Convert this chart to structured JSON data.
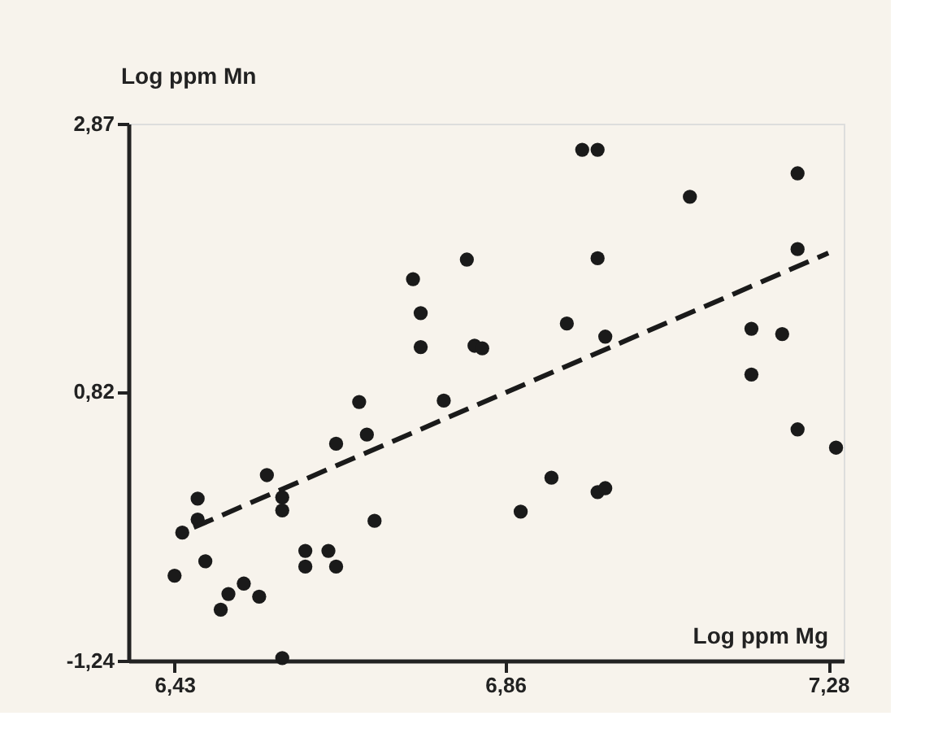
{
  "chart_data": {
    "type": "scatter",
    "xlabel": "Log ppm Mg",
    "ylabel": "Log ppm Mn",
    "xlim": [
      6.37,
      7.3
    ],
    "ylim": [
      -1.24,
      2.87
    ],
    "xticks": [
      {
        "value": 6.43,
        "label": "6,43"
      },
      {
        "value": 6.86,
        "label": "6,86"
      },
      {
        "value": 7.28,
        "label": "7,28"
      }
    ],
    "yticks": [
      {
        "value": -1.24,
        "label": "-1,24"
      },
      {
        "value": 0.82,
        "label": "0,82"
      },
      {
        "value": 2.87,
        "label": "2,87"
      }
    ],
    "grid": false,
    "series": [
      {
        "color": "#1a1a1a",
        "marker": "circle",
        "x": [
          6.43,
          6.44,
          6.46,
          6.46,
          6.47,
          6.49,
          6.5,
          6.52,
          6.54,
          6.55,
          6.57,
          6.57,
          6.57,
          6.6,
          6.6,
          6.63,
          6.64,
          6.64,
          6.67,
          6.68,
          6.69,
          6.74,
          6.75,
          6.75,
          6.78,
          6.81,
          6.82,
          6.83,
          6.96,
          6.98,
          7.24,
          7.1,
          6.98,
          7.24,
          6.94,
          6.99,
          7.18,
          7.22,
          7.18,
          7.24,
          7.29,
          6.92,
          6.88,
          6.98,
          6.99
        ],
        "values": [
          -0.59,
          -0.26,
          0.0,
          -0.16,
          -0.48,
          -0.85,
          -0.73,
          -0.65,
          -0.75,
          0.18,
          0.01,
          -0.09,
          -1.22,
          -0.4,
          -0.52,
          -0.4,
          -0.52,
          0.42,
          0.74,
          0.49,
          -0.17,
          1.68,
          1.42,
          1.16,
          0.75,
          1.83,
          1.17,
          1.15,
          2.67,
          2.67,
          2.49,
          2.31,
          1.84,
          1.91,
          1.34,
          1.24,
          1.3,
          1.26,
          0.95,
          0.53,
          0.39,
          0.16,
          -0.1,
          0.05,
          0.08
        ]
      },
      {
        "type": "line",
        "color": "#1a1a1a",
        "line_style": "dashed",
        "x": [
          6.455,
          7.28
        ],
        "values": [
          -0.22,
          1.88
        ]
      }
    ]
  }
}
